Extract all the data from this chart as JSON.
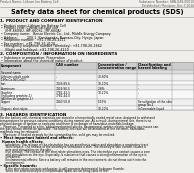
{
  "bg_color": "#f0eeea",
  "white": "#ffffff",
  "header_left": "Product Name: Lithium Ion Battery Cell",
  "header_right1": "Substance Number: SBN-049-00010",
  "header_right2": "Established / Revision: Dec.7.2016",
  "title": "Safety data sheet for chemical products (SDS)",
  "s1_title": "1. PRODUCT AND COMPANY IDENTIFICATION",
  "s1_lines": [
    "• Product name: Lithium Ion Battery Cell",
    "• Product code: Cylindrical-type cell",
    "    (IHF-660SU, IHF-660SL, IHF-660A)",
    "• Company name:   Benzo Electric Co., Ltd., Middle Energy Company",
    "• Address:         200-1  Kamitanaka, Numazu-City, Hyogo, Japan",
    "• Telephone number:  +81-798-26-4111",
    "• Fax number:  +81-798-26-4120",
    "• Emergency telephone number (Weekday): +81-798-26-2662",
    "    (Night and holidays): +81-798-26-4120"
  ],
  "s2_title": "2. COMPOSITION / INFORMATION ON INGREDIENTS",
  "s2_sub1": "• Substance or preparation: Preparation",
  "s2_sub2": "• Information about the chemical nature of product:",
  "tbl_h": [
    "Component",
    "CAS number",
    "Concentration /\nConcentration range",
    "Classification and\nhazard labeling"
  ],
  "tbl_rows": [
    [
      "Lithium cobalt oxide\n(LiMn-Co-Ni/CoO2)",
      "-",
      "30-60%",
      ""
    ],
    [
      "Iron",
      "7439-89-6",
      "10-20%",
      "-"
    ],
    [
      "Aluminum",
      "7429-90-5",
      "2-8%",
      "-"
    ],
    [
      "Graphite\n(Including graphite-1)\n(All film on graphite-1)",
      "7782-42-5\n7782-44-0",
      "10-20%",
      "-"
    ],
    [
      "Copper",
      "7440-50-8",
      "5-15%",
      "Sensitization of the skin\ngroup No.2"
    ],
    [
      "Organic electrolyte",
      "-",
      "10-20%",
      "Inflammable liquid"
    ]
  ],
  "s3_title": "3. HAZARDS IDENTIFICATION",
  "s3_lines": [
    "For the battery cell, chemical materials are stored in a hermetically sealed metal case, designed to withstand",
    "temperatures or pressure-volume-conditions during normal use. As a result, during normal use, there is no",
    "physical danger of ignition or explosion and there is no danger of hazardous materials leakage.",
    "    However, if exposed to a fire, added mechanical shocks, decomposed, written electric without any issues can.",
    "the gas release cannot be operated. The battery cell case will be breached at the extreme, hazardous",
    "materials may be released.",
    "    Moreover, if heated strongly by the surrounding fire, solid gas may be emitted."
  ],
  "s3_bullet": "• Most important hazard and effects:",
  "s3_human": "Human health effects:",
  "s3_inhale": "    Inhalation: The release of the electrolyte has an anesthesia action and stimulates a respiratory tract.",
  "s3_skin1": "    Skin contact: The release of the electrolyte stimulates a skin. The electrolyte skin contact causes a",
  "s3_skin2": "    sore and stimulation on the skin.",
  "s3_eye1": "    Eye contact: The release of the electrolyte stimulates eyes. The electrolyte eye contact causes a sore",
  "s3_eye2": "    and stimulation on the eye. Especially, a substance that causes a strong inflammation of the eye is",
  "s3_eye3": "    contained.",
  "s3_env1": "    Environmental effects: Since a battery cell remains in the environment, do not throw out it into the",
  "s3_env2": "    environment.",
  "s3_spec": "• Specific hazards:",
  "s3_spec1": "    If the electrolyte contacts with water, it will generate detrimental hydrogen fluoride.",
  "s3_spec2": "    Since the seal-electrolyte is inflammable liquid, do not bring close to fire."
}
